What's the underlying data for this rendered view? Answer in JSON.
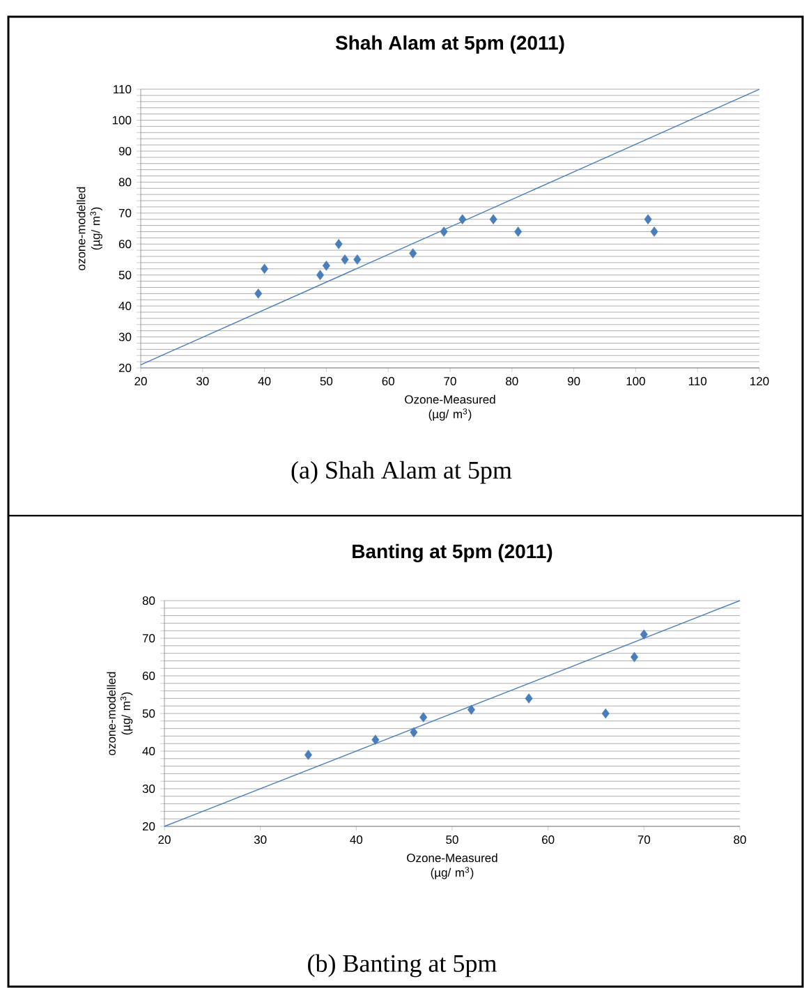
{
  "chart_data": [
    {
      "type": "scatter",
      "title": "Shah Alam at 5pm (2011)",
      "xlabel": "Ozone-Measured (µg/ m$^{3}$)",
      "ylabel": "ozone-modelled (µg/ m$^{3}$)",
      "annotations": [
        "(a) Shah Alam at 5pm"
      ],
      "grid": "y",
      "marker": "diamond",
      "xlim": [
        20,
        120
      ],
      "xticks": [
        20,
        30,
        40,
        50,
        60,
        70,
        80,
        90,
        100,
        110,
        120
      ],
      "ylim": [
        20,
        110
      ],
      "yticks": [
        20,
        {
          "value": 22,
          "label": null
        },
        {
          "value": 24,
          "label": null
        },
        {
          "value": 26,
          "label": null
        },
        {
          "value": 28,
          "label": null
        },
        30,
        {
          "value": 32,
          "label": null
        },
        {
          "value": 34,
          "label": null
        },
        {
          "value": 36,
          "label": null
        },
        {
          "value": 38,
          "label": null
        },
        40,
        {
          "value": 42,
          "label": null
        },
        {
          "value": 44,
          "label": null
        },
        {
          "value": 46,
          "label": null
        },
        {
          "value": 48,
          "label": null
        },
        50,
        {
          "value": 52,
          "label": null
        },
        {
          "value": 54,
          "label": null
        },
        {
          "value": 56,
          "label": null
        },
        {
          "value": 58,
          "label": null
        },
        60,
        {
          "value": 62,
          "label": null
        },
        {
          "value": 64,
          "label": null
        },
        {
          "value": 66,
          "label": null
        },
        {
          "value": 68,
          "label": null
        },
        70,
        {
          "value": 72,
          "label": null
        },
        {
          "value": 74,
          "label": null
        },
        {
          "value": 76,
          "label": null
        },
        {
          "value": 78,
          "label": null
        },
        80,
        {
          "value": 82,
          "label": null
        },
        {
          "value": 84,
          "label": null
        },
        {
          "value": 86,
          "label": null
        },
        {
          "value": 88,
          "label": null
        },
        90,
        {
          "value": 92,
          "label": null
        },
        {
          "value": 94,
          "label": null
        },
        {
          "value": 96,
          "label": null
        },
        {
          "value": 98,
          "label": null
        },
        100,
        {
          "value": 102,
          "label": null
        },
        {
          "value": 104,
          "label": null
        },
        {
          "value": 106,
          "label": null
        },
        {
          "value": 108,
          "label": null
        },
        110
      ],
      "series": [
        {
          "color": "#4a7ebb",
          "x": [
            39,
            40,
            49,
            50,
            52,
            53,
            55,
            64,
            69,
            72,
            77,
            81,
            102,
            103
          ],
          "values": [
            44,
            52,
            50,
            53,
            60,
            55,
            55,
            57,
            64,
            68,
            68,
            64,
            68,
            64
          ]
        },
        {
          "type": "line",
          "marker": "none",
          "color": "#4a7ebb",
          "x": [
            20,
            120
          ],
          "values": [
            21,
            110
          ]
        }
      ]
    },
    {
      "type": "scatter",
      "title": "Banting at 5pm (2011)",
      "xlabel": "Ozone-Measured (µg/ m$^{3}$)",
      "ylabel": "ozone-modelled (µg/ m$^{3}$)",
      "annotations": [
        "(b) Banting at 5pm"
      ],
      "grid": "y",
      "marker": "diamond",
      "xlim": [
        20,
        80
      ],
      "xticks": [
        20,
        30,
        40,
        50,
        60,
        70,
        80
      ],
      "ylim": [
        20,
        80
      ],
      "yticks": [
        20,
        {
          "value": 22,
          "label": null
        },
        {
          "value": 24,
          "label": null
        },
        {
          "value": 26,
          "label": null
        },
        {
          "value": 28,
          "label": null
        },
        30,
        {
          "value": 32,
          "label": null
        },
        {
          "value": 34,
          "label": null
        },
        {
          "value": 36,
          "label": null
        },
        {
          "value": 38,
          "label": null
        },
        40,
        {
          "value": 42,
          "label": null
        },
        {
          "value": 44,
          "label": null
        },
        {
          "value": 46,
          "label": null
        },
        {
          "value": 48,
          "label": null
        },
        50,
        {
          "value": 52,
          "label": null
        },
        {
          "value": 54,
          "label": null
        },
        {
          "value": 56,
          "label": null
        },
        {
          "value": 58,
          "label": null
        },
        60,
        {
          "value": 62,
          "label": null
        },
        {
          "value": 64,
          "label": null
        },
        {
          "value": 66,
          "label": null
        },
        {
          "value": 68,
          "label": null
        },
        70,
        {
          "value": 72,
          "label": null
        },
        {
          "value": 74,
          "label": null
        },
        {
          "value": 76,
          "label": null
        },
        {
          "value": 78,
          "label": null
        },
        80
      ],
      "series": [
        {
          "color": "#4a7ebb",
          "x": [
            35,
            42,
            46,
            47,
            52,
            58,
            66,
            69,
            70
          ],
          "values": [
            39,
            43,
            45,
            49,
            51,
            54,
            50,
            65,
            71
          ]
        },
        {
          "type": "line",
          "marker": "none",
          "color": "#4a7ebb",
          "x": [
            20,
            80
          ],
          "values": [
            20,
            80
          ]
        }
      ]
    }
  ]
}
